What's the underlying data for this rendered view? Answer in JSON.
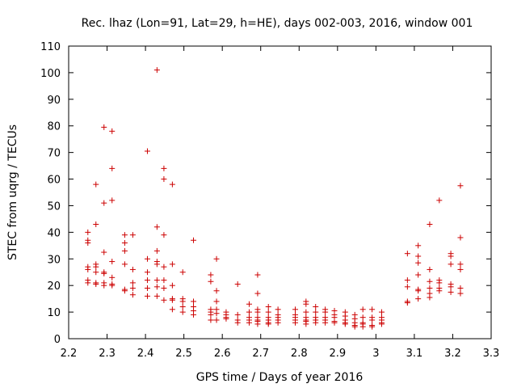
{
  "chart_data": {
    "type": "scatter",
    "title": "Rec. lhaz (Lon=91, Lat=29, h=HE), days 002-003, 2016, window 001",
    "xlabel": "GPS time / Days of year 2016",
    "ylabel": "STEC from uqrg / TECUs",
    "xlim": [
      2.2,
      3.3
    ],
    "ylim": [
      0,
      110
    ],
    "xticks": [
      "2.2",
      "2.3",
      "2.4",
      "2.5",
      "2.6",
      "2.7",
      "2.8",
      "2.9",
      "3",
      "3.1",
      "3.2",
      "3.3"
    ],
    "yticks": [
      "0",
      "10",
      "20",
      "30",
      "40",
      "50",
      "60",
      "70",
      "80",
      "90",
      "100",
      "110"
    ],
    "marker": "+",
    "marker_color": "#cc0000",
    "series": [
      {
        "name": "STEC",
        "points": [
          [
            2.25,
            40
          ],
          [
            2.25,
            37
          ],
          [
            2.25,
            36
          ],
          [
            2.25,
            27
          ],
          [
            2.25,
            26
          ],
          [
            2.25,
            22
          ],
          [
            2.25,
            21
          ],
          [
            2.271,
            58
          ],
          [
            2.271,
            43
          ],
          [
            2.271,
            28
          ],
          [
            2.271,
            27
          ],
          [
            2.271,
            25
          ],
          [
            2.271,
            21
          ],
          [
            2.271,
            20.5
          ],
          [
            2.292,
            79.5
          ],
          [
            2.292,
            51
          ],
          [
            2.292,
            32.5
          ],
          [
            2.292,
            25
          ],
          [
            2.292,
            24.5
          ],
          [
            2.292,
            21
          ],
          [
            2.292,
            20
          ],
          [
            2.313,
            78
          ],
          [
            2.313,
            64
          ],
          [
            2.313,
            52
          ],
          [
            2.313,
            29
          ],
          [
            2.313,
            23
          ],
          [
            2.313,
            20.5
          ],
          [
            2.313,
            20
          ],
          [
            2.346,
            39
          ],
          [
            2.346,
            36
          ],
          [
            2.346,
            33
          ],
          [
            2.346,
            28
          ],
          [
            2.346,
            18.5
          ],
          [
            2.346,
            18
          ],
          [
            2.367,
            39
          ],
          [
            2.367,
            26
          ],
          [
            2.367,
            21
          ],
          [
            2.367,
            19
          ],
          [
            2.367,
            16.5
          ],
          [
            2.405,
            70.5
          ],
          [
            2.405,
            30
          ],
          [
            2.405,
            25
          ],
          [
            2.405,
            22
          ],
          [
            2.405,
            19
          ],
          [
            2.405,
            16
          ],
          [
            2.43,
            101
          ],
          [
            2.43,
            42
          ],
          [
            2.43,
            33
          ],
          [
            2.43,
            29
          ],
          [
            2.43,
            28
          ],
          [
            2.43,
            22
          ],
          [
            2.43,
            19.5
          ],
          [
            2.43,
            16
          ],
          [
            2.448,
            64
          ],
          [
            2.448,
            60
          ],
          [
            2.448,
            39
          ],
          [
            2.448,
            27
          ],
          [
            2.448,
            22
          ],
          [
            2.448,
            19
          ],
          [
            2.448,
            14.5
          ],
          [
            2.47,
            58
          ],
          [
            2.47,
            28
          ],
          [
            2.47,
            20
          ],
          [
            2.47,
            15
          ],
          [
            2.47,
            14.5
          ],
          [
            2.47,
            11
          ],
          [
            2.497,
            25
          ],
          [
            2.497,
            15
          ],
          [
            2.497,
            14
          ],
          [
            2.497,
            12
          ],
          [
            2.497,
            10
          ],
          [
            2.525,
            37
          ],
          [
            2.525,
            14
          ],
          [
            2.525,
            12
          ],
          [
            2.525,
            10.5
          ],
          [
            2.525,
            9
          ],
          [
            2.57,
            24
          ],
          [
            2.57,
            21.5
          ],
          [
            2.57,
            11
          ],
          [
            2.57,
            10
          ],
          [
            2.57,
            9
          ],
          [
            2.57,
            7
          ],
          [
            2.585,
            30
          ],
          [
            2.585,
            18
          ],
          [
            2.585,
            14
          ],
          [
            2.585,
            11
          ],
          [
            2.585,
            9.5
          ],
          [
            2.585,
            7
          ],
          [
            2.61,
            10
          ],
          [
            2.61,
            9
          ],
          [
            2.61,
            8
          ],
          [
            2.61,
            7.5
          ],
          [
            2.64,
            20.5
          ],
          [
            2.64,
            9
          ],
          [
            2.64,
            7
          ],
          [
            2.64,
            6
          ],
          [
            2.67,
            13
          ],
          [
            2.67,
            10
          ],
          [
            2.67,
            8
          ],
          [
            2.67,
            7
          ],
          [
            2.67,
            6
          ],
          [
            2.692,
            24
          ],
          [
            2.692,
            17
          ],
          [
            2.692,
            11
          ],
          [
            2.692,
            10
          ],
          [
            2.692,
            8
          ],
          [
            2.692,
            7
          ],
          [
            2.692,
            6.5
          ],
          [
            2.692,
            5.5
          ],
          [
            2.72,
            12
          ],
          [
            2.72,
            10
          ],
          [
            2.72,
            8
          ],
          [
            2.72,
            7
          ],
          [
            2.72,
            6
          ],
          [
            2.72,
            5.5
          ],
          [
            2.745,
            11
          ],
          [
            2.745,
            9
          ],
          [
            2.745,
            8
          ],
          [
            2.745,
            7
          ],
          [
            2.745,
            6
          ],
          [
            2.79,
            11
          ],
          [
            2.79,
            9
          ],
          [
            2.79,
            8
          ],
          [
            2.79,
            7
          ],
          [
            2.79,
            6
          ],
          [
            2.818,
            14
          ],
          [
            2.818,
            13
          ],
          [
            2.818,
            10
          ],
          [
            2.818,
            8
          ],
          [
            2.818,
            7
          ],
          [
            2.818,
            6.5
          ],
          [
            2.818,
            5.5
          ],
          [
            2.843,
            12
          ],
          [
            2.843,
            10
          ],
          [
            2.843,
            8
          ],
          [
            2.843,
            7
          ],
          [
            2.843,
            6
          ],
          [
            2.868,
            11
          ],
          [
            2.868,
            10
          ],
          [
            2.868,
            8
          ],
          [
            2.868,
            7
          ],
          [
            2.868,
            6
          ],
          [
            2.892,
            10.5
          ],
          [
            2.892,
            9
          ],
          [
            2.892,
            8
          ],
          [
            2.892,
            6.5
          ],
          [
            2.892,
            6
          ],
          [
            2.92,
            10
          ],
          [
            2.92,
            8.5
          ],
          [
            2.92,
            7
          ],
          [
            2.92,
            6
          ],
          [
            2.92,
            5.5
          ],
          [
            2.945,
            9
          ],
          [
            2.945,
            7.5
          ],
          [
            2.945,
            6
          ],
          [
            2.945,
            5
          ],
          [
            2.945,
            4.5
          ],
          [
            2.966,
            11
          ],
          [
            2.966,
            8
          ],
          [
            2.966,
            6
          ],
          [
            2.966,
            5.5
          ],
          [
            2.966,
            4.5
          ],
          [
            2.99,
            11
          ],
          [
            2.99,
            8
          ],
          [
            2.99,
            7
          ],
          [
            2.99,
            5
          ],
          [
            2.99,
            4.5
          ],
          [
            3.015,
            10
          ],
          [
            3.015,
            8
          ],
          [
            3.015,
            7
          ],
          [
            3.015,
            6
          ],
          [
            3.015,
            5.5
          ],
          [
            3.082,
            32
          ],
          [
            3.082,
            22
          ],
          [
            3.082,
            19.5
          ],
          [
            3.082,
            14
          ],
          [
            3.082,
            13.5
          ],
          [
            3.11,
            35
          ],
          [
            3.11,
            31
          ],
          [
            3.11,
            28.5
          ],
          [
            3.11,
            24
          ],
          [
            3.11,
            18.5
          ],
          [
            3.11,
            18
          ],
          [
            3.11,
            15
          ],
          [
            3.14,
            43
          ],
          [
            3.14,
            26
          ],
          [
            3.14,
            21.5
          ],
          [
            3.14,
            19
          ],
          [
            3.14,
            17
          ],
          [
            3.14,
            15.5
          ],
          [
            3.165,
            52
          ],
          [
            3.165,
            22
          ],
          [
            3.165,
            21
          ],
          [
            3.165,
            19
          ],
          [
            3.165,
            18
          ],
          [
            3.195,
            32
          ],
          [
            3.195,
            31
          ],
          [
            3.195,
            28
          ],
          [
            3.195,
            20.5
          ],
          [
            3.195,
            19.5
          ],
          [
            3.195,
            17.5
          ],
          [
            3.22,
            57.5
          ],
          [
            3.22,
            38
          ],
          [
            3.22,
            28
          ],
          [
            3.22,
            26
          ],
          [
            3.22,
            19
          ],
          [
            3.22,
            17
          ]
        ]
      }
    ]
  }
}
